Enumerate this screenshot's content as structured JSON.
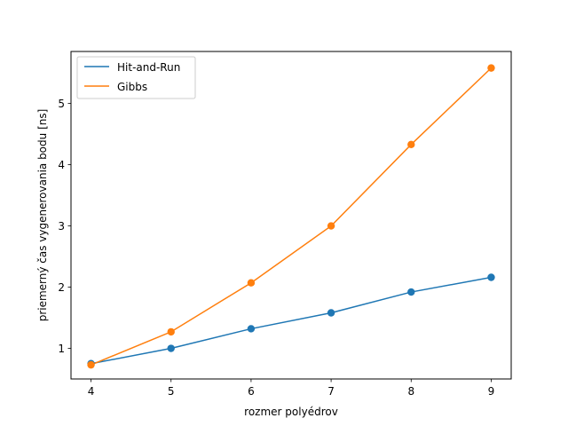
{
  "chart_data": {
    "type": "line",
    "title": "",
    "xlabel": "rozmer polyédrov",
    "ylabel": "priemerný čas vygenerovania bodu [ns]",
    "x": [
      4,
      5,
      6,
      7,
      8,
      9
    ],
    "xlim": [
      3.75,
      9.25
    ],
    "ylim": [
      0.5,
      5.85
    ],
    "xticks": [
      "4",
      "5",
      "6",
      "7",
      "8",
      "9"
    ],
    "yticks": [
      "1",
      "2",
      "3",
      "4",
      "5"
    ],
    "grid": false,
    "legend_position": "top-left",
    "series": [
      {
        "name": "Hit-and-Run",
        "color": "#1f77b4",
        "values": [
          0.75,
          1.0,
          1.32,
          1.58,
          1.92,
          2.16
        ]
      },
      {
        "name": "Gibbs",
        "color": "#ff7f0e",
        "values": [
          0.73,
          1.27,
          2.07,
          3.0,
          4.33,
          5.58
        ]
      }
    ]
  }
}
